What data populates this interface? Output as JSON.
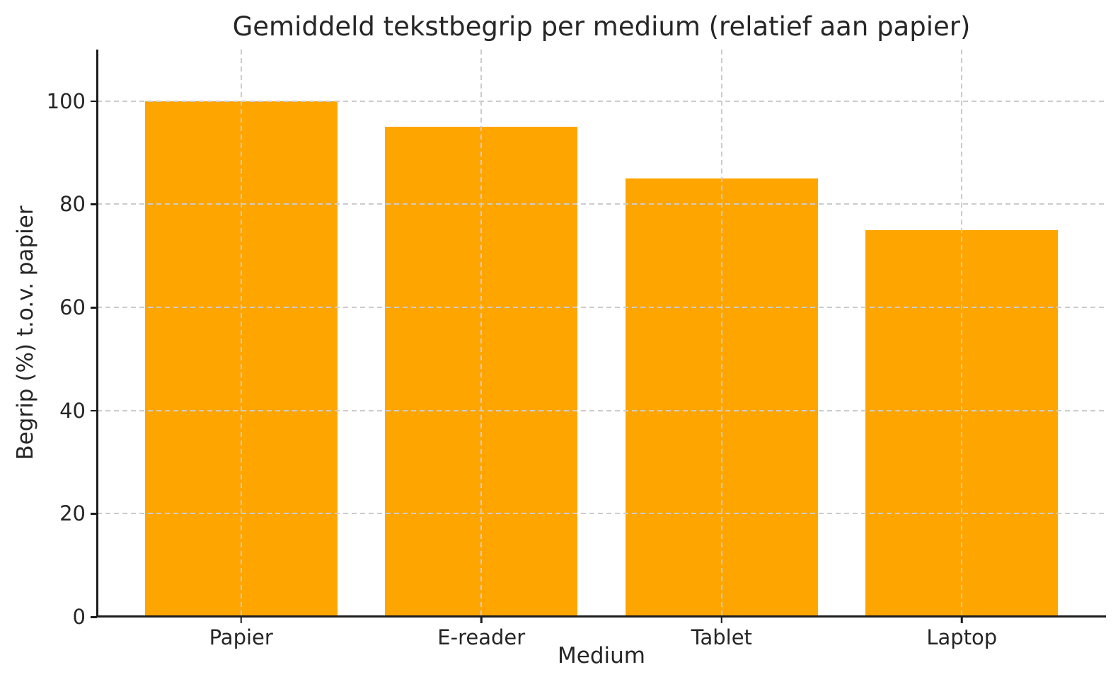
{
  "chart_data": {
    "type": "bar",
    "title": "Gemiddeld tekstbegrip per medium (relatief aan papier)",
    "xlabel": "Medium",
    "ylabel": "Begrip (%) t.o.v. papier",
    "categories": [
      "Papier",
      "E-reader",
      "Tablet",
      "Laptop"
    ],
    "values": [
      100,
      95,
      85,
      75
    ],
    "yticks": [
      0,
      20,
      40,
      60,
      80,
      100
    ],
    "ylim": [
      0,
      110
    ],
    "xlim": [
      -0.6,
      3.6
    ],
    "bar_width": 0.8,
    "bar_color": "#FFA500",
    "grid": "dashed, both axes, drawn above bars",
    "grid_color": "#cccccc",
    "spine_color": "#1c1c1c",
    "text_color": "#262626",
    "background_color": "#ffffff",
    "legend": "none"
  }
}
